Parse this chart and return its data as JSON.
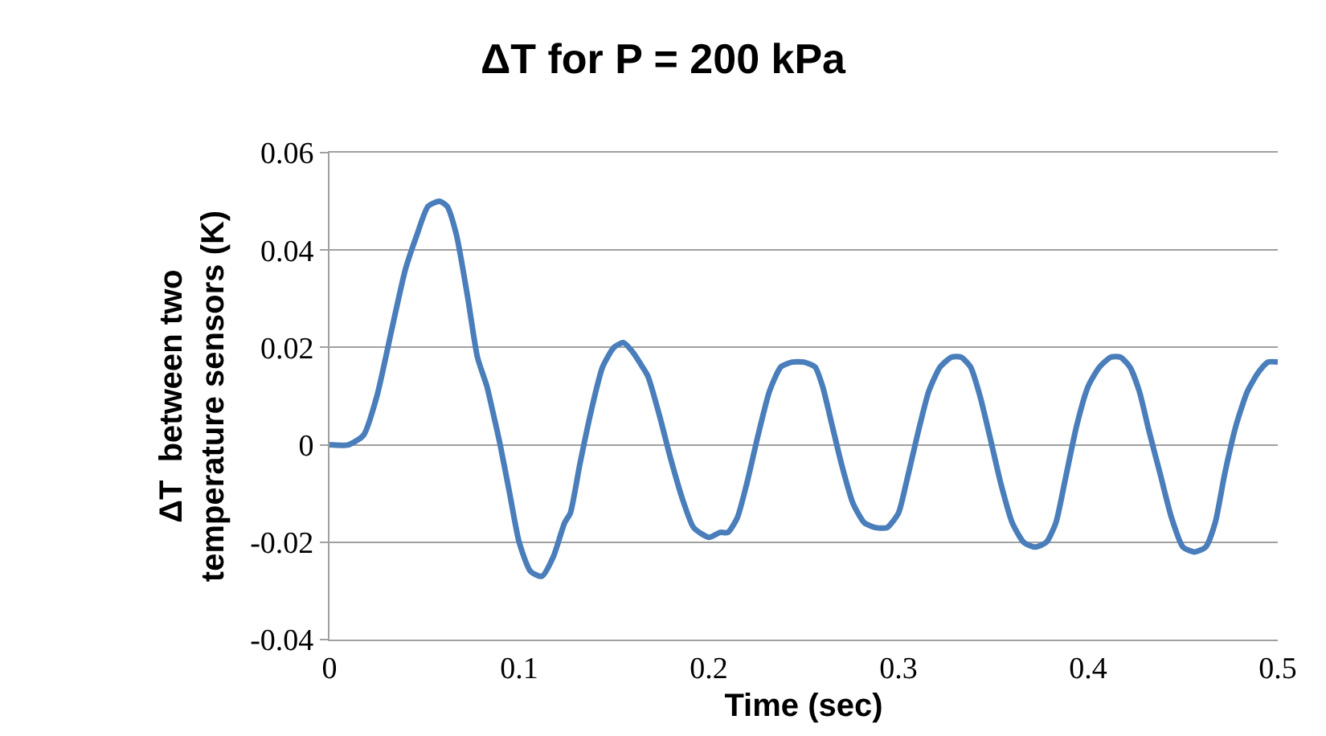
{
  "chart_data": {
    "type": "line",
    "title": "ΔT for P = 200 kPa",
    "xlabel": "Time (sec)",
    "ylabel": "ΔT  between two\ntemperature sensors (K)",
    "x": [
      0,
      0.01,
      0.018,
      0.025,
      0.033,
      0.04,
      0.046,
      0.052,
      0.058,
      0.062,
      0.067,
      0.073,
      0.078,
      0.083,
      0.086,
      0.09,
      0.095,
      0.1,
      0.106,
      0.112,
      0.118,
      0.124,
      0.127,
      0.132,
      0.138,
      0.144,
      0.15,
      0.155,
      0.16,
      0.165,
      0.168,
      0.174,
      0.18,
      0.186,
      0.192,
      0.2,
      0.206,
      0.21,
      0.215,
      0.22,
      0.226,
      0.232,
      0.238,
      0.244,
      0.25,
      0.256,
      0.26,
      0.265,
      0.27,
      0.276,
      0.282,
      0.288,
      0.294,
      0.3,
      0.304,
      0.31,
      0.316,
      0.322,
      0.328,
      0.333,
      0.338,
      0.343,
      0.348,
      0.354,
      0.36,
      0.366,
      0.372,
      0.378,
      0.383,
      0.388,
      0.394,
      0.4,
      0.406,
      0.412,
      0.417,
      0.422,
      0.427,
      0.432,
      0.438,
      0.444,
      0.45,
      0.456,
      0.462,
      0.467,
      0.472,
      0.478,
      0.484,
      0.49,
      0.495,
      0.5
    ],
    "series": [
      {
        "color": "#4a7ebb",
        "values": [
          0,
          0,
          0.002,
          0.01,
          0.024,
          0.036,
          0.043,
          0.049,
          0.05,
          0.049,
          0.043,
          0.03,
          0.018,
          0.012,
          0.007,
          0,
          -0.01,
          -0.02,
          -0.026,
          -0.027,
          -0.023,
          -0.016,
          -0.014,
          -0.004,
          0.007,
          0.016,
          0.02,
          0.021,
          0.019,
          0.016,
          0.014,
          0.006,
          -0.003,
          -0.011,
          -0.017,
          -0.019,
          -0.018,
          -0.018,
          -0.015,
          -0.008,
          0.002,
          0.011,
          0.016,
          0.017,
          0.017,
          0.016,
          0.012,
          0.004,
          -0.004,
          -0.012,
          -0.016,
          -0.017,
          -0.017,
          -0.014,
          -0.008,
          0.002,
          0.011,
          0.016,
          0.018,
          0.018,
          0.016,
          0.01,
          0.002,
          -0.008,
          -0.016,
          -0.02,
          -0.021,
          -0.02,
          -0.016,
          -0.007,
          0.004,
          0.012,
          0.016,
          0.018,
          0.018,
          0.016,
          0.011,
          0.003,
          -0.006,
          -0.015,
          -0.021,
          -0.022,
          -0.021,
          -0.016,
          -0.006,
          0.004,
          0.011,
          0.015,
          0.017,
          0.017
        ]
      }
    ],
    "xlim": [
      0,
      0.5
    ],
    "xticks": [
      0,
      0.1,
      0.2,
      0.3,
      0.4,
      0.5
    ],
    "ylim": [
      -0.04,
      0.06
    ],
    "yticks": [
      {
        "value": -0.04,
        "label": "-0.04"
      },
      {
        "value": -0.02,
        "label": "-0.02"
      },
      0,
      {
        "value": 0.02,
        "label": "0.02"
      },
      {
        "value": 0.04,
        "label": "0.04"
      },
      {
        "value": 0.06,
        "label": "0.06"
      }
    ],
    "grid": "y",
    "line_style": "solid",
    "marker": "none"
  }
}
